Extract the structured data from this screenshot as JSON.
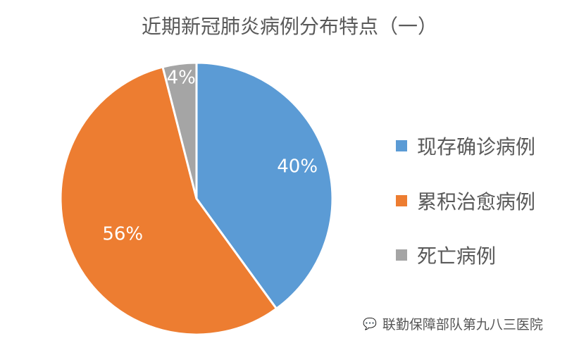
{
  "chart_data": {
    "type": "pie",
    "title": "近期新冠肺炎病例分布特点（一）",
    "categories": [
      "现存确诊病例",
      "累积治愈病例",
      "死亡病例"
    ],
    "values": [
      40,
      56,
      4
    ],
    "labels": [
      "40%",
      "56%",
      "4%"
    ],
    "colors": [
      "#5B9BD5",
      "#ED7D31",
      "#A5A5A5"
    ],
    "legend_position": "right"
  },
  "watermark": {
    "icon": "wechat-icon",
    "text": "联勤保障部队第九八三医院"
  }
}
